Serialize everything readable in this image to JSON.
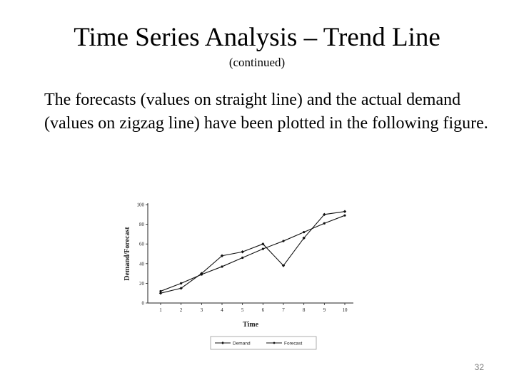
{
  "slide": {
    "title": "Time Series Analysis – Trend Line",
    "subtitle": "(continued)",
    "body": "The forecasts (values on straight line) and the actual demand (values on zigzag line) have been plotted in the following figure.",
    "page_number": "32"
  },
  "chart_data": {
    "type": "line",
    "x": [
      1,
      2,
      3,
      4,
      5,
      6,
      7,
      8,
      9,
      10
    ],
    "xlabel": "Time",
    "ylabel": "Demand/Forecast",
    "ylim": [
      0,
      100
    ],
    "yticks": [
      0,
      20,
      40,
      60,
      80,
      100
    ],
    "yticklabels": [
      "0",
      "20",
      "40",
      "60",
      "80",
      "100"
    ],
    "grid": false,
    "legend_position": "bottom",
    "series": [
      {
        "name": "Demand",
        "values": [
          10,
          15,
          30,
          48,
          52,
          60,
          38,
          66,
          90,
          93
        ],
        "color": "#111111"
      },
      {
        "name": "Forecast",
        "values": [
          12,
          20,
          29,
          37,
          46,
          55,
          63,
          72,
          81,
          89
        ],
        "color": "#111111"
      }
    ]
  }
}
